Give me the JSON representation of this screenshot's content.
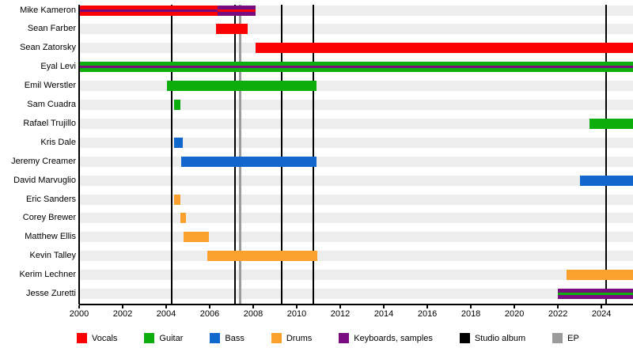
{
  "chart_data": {
    "type": "bar",
    "variant": "band-members-timeline-gantt",
    "title": "",
    "x_axis": {
      "min": 2000,
      "max": 2025.45,
      "ticks": [
        2000,
        2002,
        2004,
        2006,
        2008,
        2010,
        2012,
        2014,
        2016,
        2018,
        2020,
        2022,
        2024
      ]
    },
    "role_colors": {
      "vocals": "#fa0000",
      "guitar": "#0cad0c",
      "bass": "#1267cd",
      "drums": "#faa12d",
      "keyboards": "#780b80",
      "studio_album": "#000000",
      "ep": "#9b9b9b"
    },
    "legend": [
      {
        "label": "Vocals",
        "role": "vocals"
      },
      {
        "label": "Guitar",
        "role": "guitar"
      },
      {
        "label": "Bass",
        "role": "bass"
      },
      {
        "label": "Drums",
        "role": "drums"
      },
      {
        "label": "Keyboards, samples",
        "role": "keyboards"
      },
      {
        "label": "Studio album",
        "role": "studio_album"
      },
      {
        "label": "EP",
        "role": "ep"
      }
    ],
    "members": [
      {
        "name": "Mike Kameron",
        "segments": [
          {
            "start": 2000.0,
            "end": 2006.35,
            "role": "vocals",
            "stripe": "keyboards"
          },
          {
            "start": 2006.35,
            "end": 2008.1,
            "role": "keyboards",
            "stripe": "vocals"
          }
        ]
      },
      {
        "name": "Sean Farber",
        "segments": [
          {
            "start": 2006.3,
            "end": 2007.75,
            "role": "vocals"
          }
        ]
      },
      {
        "name": "Sean Zatorsky",
        "segments": [
          {
            "start": 2008.1,
            "end": null,
            "role": "vocals"
          }
        ]
      },
      {
        "name": "Eyal Levi",
        "segments": [
          {
            "start": 2000.0,
            "end": null,
            "role": "guitar",
            "stripe": "keyboards"
          }
        ]
      },
      {
        "name": "Emil Werstler",
        "segments": [
          {
            "start": 2004.05,
            "end": 2010.9,
            "role": "guitar"
          }
        ]
      },
      {
        "name": "Sam Cuadra",
        "segments": [
          {
            "start": 2004.35,
            "end": 2004.65,
            "role": "guitar"
          }
        ]
      },
      {
        "name": "Rafael Trujillo",
        "segments": [
          {
            "start": 2023.45,
            "end": null,
            "role": "guitar"
          }
        ]
      },
      {
        "name": "Kris Dale",
        "segments": [
          {
            "start": 2004.35,
            "end": 2004.75,
            "role": "bass"
          }
        ]
      },
      {
        "name": "Jeremy Creamer",
        "segments": [
          {
            "start": 2004.7,
            "end": 2010.9,
            "role": "bass"
          }
        ]
      },
      {
        "name": "David Marvuglio",
        "segments": [
          {
            "start": 2023.0,
            "end": null,
            "role": "bass"
          }
        ]
      },
      {
        "name": "Eric Sanders",
        "segments": [
          {
            "start": 2004.35,
            "end": 2004.65,
            "role": "drums"
          }
        ]
      },
      {
        "name": "Corey Brewer",
        "segments": [
          {
            "start": 2004.65,
            "end": 2004.9,
            "role": "drums"
          }
        ]
      },
      {
        "name": "Matthew Ellis",
        "segments": [
          {
            "start": 2004.8,
            "end": 2005.95,
            "role": "drums"
          }
        ]
      },
      {
        "name": "Kevin Talley",
        "segments": [
          {
            "start": 2005.9,
            "end": 2010.95,
            "role": "drums"
          }
        ]
      },
      {
        "name": "Kerim Lechner",
        "segments": [
          {
            "start": 2022.4,
            "end": null,
            "role": "drums"
          }
        ]
      },
      {
        "name": "Jesse Zuretti",
        "segments": [
          {
            "start": 2022.0,
            "end": null,
            "role": "keyboards",
            "stripe": "guitar"
          }
        ]
      }
    ],
    "events": {
      "studio_album": {
        "label": "Studio album",
        "years": [
          2004.25,
          2007.15,
          2009.3,
          2010.75,
          2024.2
        ]
      },
      "ep": {
        "label": "EP",
        "years": [
          2007.4
        ]
      }
    }
  }
}
